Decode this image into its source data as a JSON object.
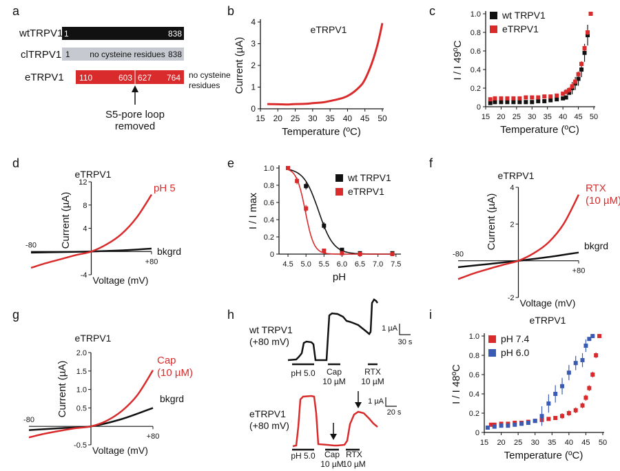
{
  "panel_letters": [
    "a",
    "b",
    "c",
    "d",
    "e",
    "f",
    "g",
    "h",
    "i"
  ],
  "colors": {
    "red": "#d92b2b",
    "black": "#111111",
    "grey": "#c6c9cf",
    "blue": "#3a5bb4"
  },
  "panel_a": {
    "constructs": [
      {
        "name": "wtTRPV1",
        "start": "1",
        "end": "838",
        "note": ""
      },
      {
        "name": "clTRPV1",
        "start": "1",
        "end": "838",
        "note": "no cysteine residues"
      },
      {
        "name": "eTRPV1",
        "labels": [
          "110",
          "603",
          "627",
          "764"
        ],
        "side_note": [
          "no cysteine",
          "residues"
        ]
      }
    ],
    "arrow_label": [
      "S5-pore loop",
      "removed"
    ]
  },
  "chart_data": [
    {
      "panel": "b",
      "type": "line",
      "title": "eTRPV1",
      "xlabel": "Temperature (ºC)",
      "ylabel": "Current (µA)",
      "xlim": [
        15,
        50
      ],
      "ylim": [
        0,
        4
      ],
      "xticks": [
        "15",
        "20",
        "25",
        "30",
        "35",
        "40",
        "45",
        "50"
      ],
      "yticks": [
        "0",
        "1",
        "2",
        "3",
        "4"
      ],
      "series": [
        {
          "x": [
            17,
            20,
            23,
            25,
            28,
            30,
            33,
            35,
            38,
            40,
            42,
            44,
            45,
            46,
            47,
            48,
            49,
            50
          ],
          "y": [
            0.22,
            0.21,
            0.2,
            0.22,
            0.23,
            0.26,
            0.3,
            0.36,
            0.47,
            0.59,
            0.8,
            1.1,
            1.35,
            1.7,
            2.1,
            2.6,
            3.2,
            3.95
          ]
        }
      ]
    },
    {
      "panel": "c",
      "type": "scatter",
      "xlabel": "Temperature (ºC)",
      "ylabel": "I / I 49ºC",
      "xlim": [
        15,
        50
      ],
      "ylim": [
        0,
        1
      ],
      "xticks": [
        "15",
        "20",
        "25",
        "30",
        "35",
        "40",
        "45",
        "50"
      ],
      "yticks": [
        "0",
        "0.2",
        "0.4",
        "0.6",
        "0.8",
        "1.0"
      ],
      "legend": "top-left",
      "series": [
        {
          "name": "wt TRPV1",
          "x": [
            16.5,
            18,
            20,
            22,
            24,
            26,
            28,
            30,
            32,
            34,
            36,
            38,
            40,
            41,
            42,
            43,
            44,
            45,
            46,
            47,
            48,
            49
          ],
          "y": [
            0.04,
            0.05,
            0.05,
            0.05,
            0.05,
            0.05,
            0.05,
            0.05,
            0.06,
            0.06,
            0.07,
            0.08,
            0.09,
            0.1,
            0.15,
            0.2,
            0.25,
            0.3,
            0.4,
            0.58,
            0.77,
            1.0
          ]
        },
        {
          "name": "eTRPV1",
          "x": [
            16.5,
            18,
            20,
            22,
            24,
            26,
            28,
            30,
            32,
            34,
            36,
            38,
            40,
            41,
            42,
            43,
            44,
            45,
            46,
            47,
            48,
            49
          ],
          "y": [
            0.08,
            0.09,
            0.09,
            0.09,
            0.09,
            0.09,
            0.1,
            0.1,
            0.1,
            0.11,
            0.11,
            0.12,
            0.14,
            0.16,
            0.18,
            0.22,
            0.27,
            0.35,
            0.46,
            0.63,
            0.8,
            1.0
          ]
        }
      ]
    },
    {
      "panel": "d",
      "type": "line",
      "title": "eTRPV1",
      "xlabel": "Voltage (mV)",
      "ylabel": "Current (µA)",
      "xlim": [
        -80,
        80
      ],
      "ylim": [
        -4,
        12
      ],
      "xticks": [
        "-80",
        "+80"
      ],
      "yticks": [
        "12",
        "8",
        "4",
        "-4"
      ],
      "series": [
        {
          "name": "pH 5",
          "x": [
            -80,
            -60,
            -40,
            -20,
            0,
            20,
            40,
            60,
            80
          ],
          "y": [
            -2.8,
            -2.0,
            -1.3,
            -0.6,
            0,
            1.2,
            3.0,
            5.8,
            9.8
          ]
        },
        {
          "name": "bkgrd",
          "x": [
            -80,
            -40,
            0,
            40,
            80
          ],
          "y": [
            -0.2,
            -0.1,
            0,
            0.2,
            0.5
          ]
        }
      ]
    },
    {
      "panel": "e",
      "type": "line",
      "xlabel": "pH",
      "ylabel": "I / I max",
      "xlim": [
        4.25,
        7.6
      ],
      "ylim": [
        0,
        1
      ],
      "xticks": [
        "4.5",
        "5.0",
        "5.5",
        "6.0",
        "6.5",
        "7.0",
        "7.5"
      ],
      "yticks": [
        "0",
        "0.2",
        "0.4",
        "0.6",
        "0.8",
        "1.0"
      ],
      "legend": "top-right",
      "series": [
        {
          "name": "wt TRPV1",
          "x": [
            4.5,
            5.0,
            5.5,
            6.0,
            6.5,
            7.4
          ],
          "y": [
            1.0,
            0.79,
            0.33,
            0.05,
            0.01,
            0.01
          ]
        },
        {
          "name": "eTRPV1",
          "x": [
            4.5,
            4.75,
            5.0,
            5.5,
            6.0,
            6.5,
            7.4
          ],
          "y": [
            1.0,
            0.85,
            0.53,
            0.04,
            0.01,
            0.0,
            0.0
          ]
        }
      ]
    },
    {
      "panel": "f",
      "type": "line",
      "title": "eTRPV1",
      "xlabel": "Voltage (mV)",
      "ylabel": "Current (µA)",
      "xlim": [
        -80,
        80
      ],
      "ylim": [
        -2,
        4
      ],
      "xticks": [
        "-80",
        "+80"
      ],
      "yticks": [
        "4",
        "2",
        "-2"
      ],
      "series": [
        {
          "name": "RTX (10 µM)",
          "x": [
            -80,
            -60,
            -40,
            -20,
            0,
            20,
            40,
            60,
            80
          ],
          "y": [
            -1.0,
            -0.7,
            -0.45,
            -0.22,
            0,
            0.4,
            1.0,
            2.0,
            3.6
          ]
        },
        {
          "name": "bkgrd",
          "x": [
            -80,
            -40,
            0,
            40,
            80
          ],
          "y": [
            -0.35,
            -0.18,
            0,
            0.2,
            0.45
          ]
        }
      ]
    },
    {
      "panel": "g",
      "type": "line",
      "title": "eTRPV1",
      "xlabel": "Voltage (mV)",
      "ylabel": "Current (µA)",
      "xlim": [
        -80,
        80
      ],
      "ylim": [
        -0.5,
        2.0
      ],
      "xticks": [
        "-80",
        "+80"
      ],
      "yticks": [
        "2.0",
        "1.5",
        "1.0",
        "0.5",
        "-0.5"
      ],
      "series": [
        {
          "name": "Cap (10 µM)",
          "x": [
            -80,
            -60,
            -40,
            -20,
            0,
            20,
            40,
            60,
            80
          ],
          "y": [
            -0.3,
            -0.2,
            -0.12,
            -0.05,
            0,
            0.15,
            0.42,
            0.85,
            1.52
          ]
        },
        {
          "name": "bkgrd",
          "x": [
            -80,
            -40,
            0,
            40,
            80
          ],
          "y": [
            -0.1,
            -0.05,
            0,
            0.2,
            0.5
          ]
        }
      ]
    },
    {
      "panel": "i",
      "type": "scatter",
      "title": "eTRPV1",
      "xlabel": "Temperature (ºC)",
      "ylabel": "I / I 48ºC",
      "xlim": [
        15,
        50
      ],
      "ylim": [
        0,
        1
      ],
      "xticks": [
        "15",
        "20",
        "25",
        "30",
        "35",
        "40",
        "45",
        "50"
      ],
      "yticks": [
        "0",
        "0.2",
        "0.4",
        "0.6",
        "0.8",
        "1.0"
      ],
      "legend": "top-left",
      "series": [
        {
          "name": "pH 7.4",
          "x": [
            17,
            18,
            20,
            22,
            24,
            26,
            28,
            30,
            32,
            34,
            36,
            38,
            40,
            42,
            44,
            45,
            46,
            47,
            48,
            49
          ],
          "y": [
            0.08,
            0.08,
            0.09,
            0.09,
            0.1,
            0.1,
            0.11,
            0.12,
            0.13,
            0.14,
            0.15,
            0.17,
            0.2,
            0.23,
            0.28,
            0.36,
            0.46,
            0.6,
            0.8,
            1.0
          ]
        },
        {
          "name": "pH 6.0",
          "x": [
            16,
            18,
            20,
            22,
            24,
            26,
            28,
            30,
            32,
            34,
            36,
            38,
            40,
            42,
            44,
            45,
            46,
            47
          ],
          "y": [
            0.05,
            0.06,
            0.07,
            0.07,
            0.08,
            0.09,
            0.1,
            0.12,
            0.17,
            0.3,
            0.4,
            0.48,
            0.62,
            0.72,
            0.75,
            0.9,
            0.97,
            1.0
          ]
        }
      ]
    }
  ],
  "panel_h": {
    "traces": [
      {
        "name": "wt TRPV1",
        "condition": "(+80 mV)",
        "stimuli": [
          [
            "pH 5.0",
            ""
          ],
          [
            "Cap",
            "10 µM"
          ],
          [
            "RTX",
            "10 µM"
          ]
        ],
        "scale": [
          "1 µA",
          "30 s"
        ]
      },
      {
        "name": "eTRPV1",
        "condition": "(+80 mV)",
        "stimuli": [
          [
            "pH 5.0",
            ""
          ],
          [
            "Cap",
            "10 µM"
          ],
          [
            "RTX",
            "10 µM"
          ]
        ],
        "scale": [
          "1 µA",
          "20 s"
        ]
      }
    ]
  }
}
